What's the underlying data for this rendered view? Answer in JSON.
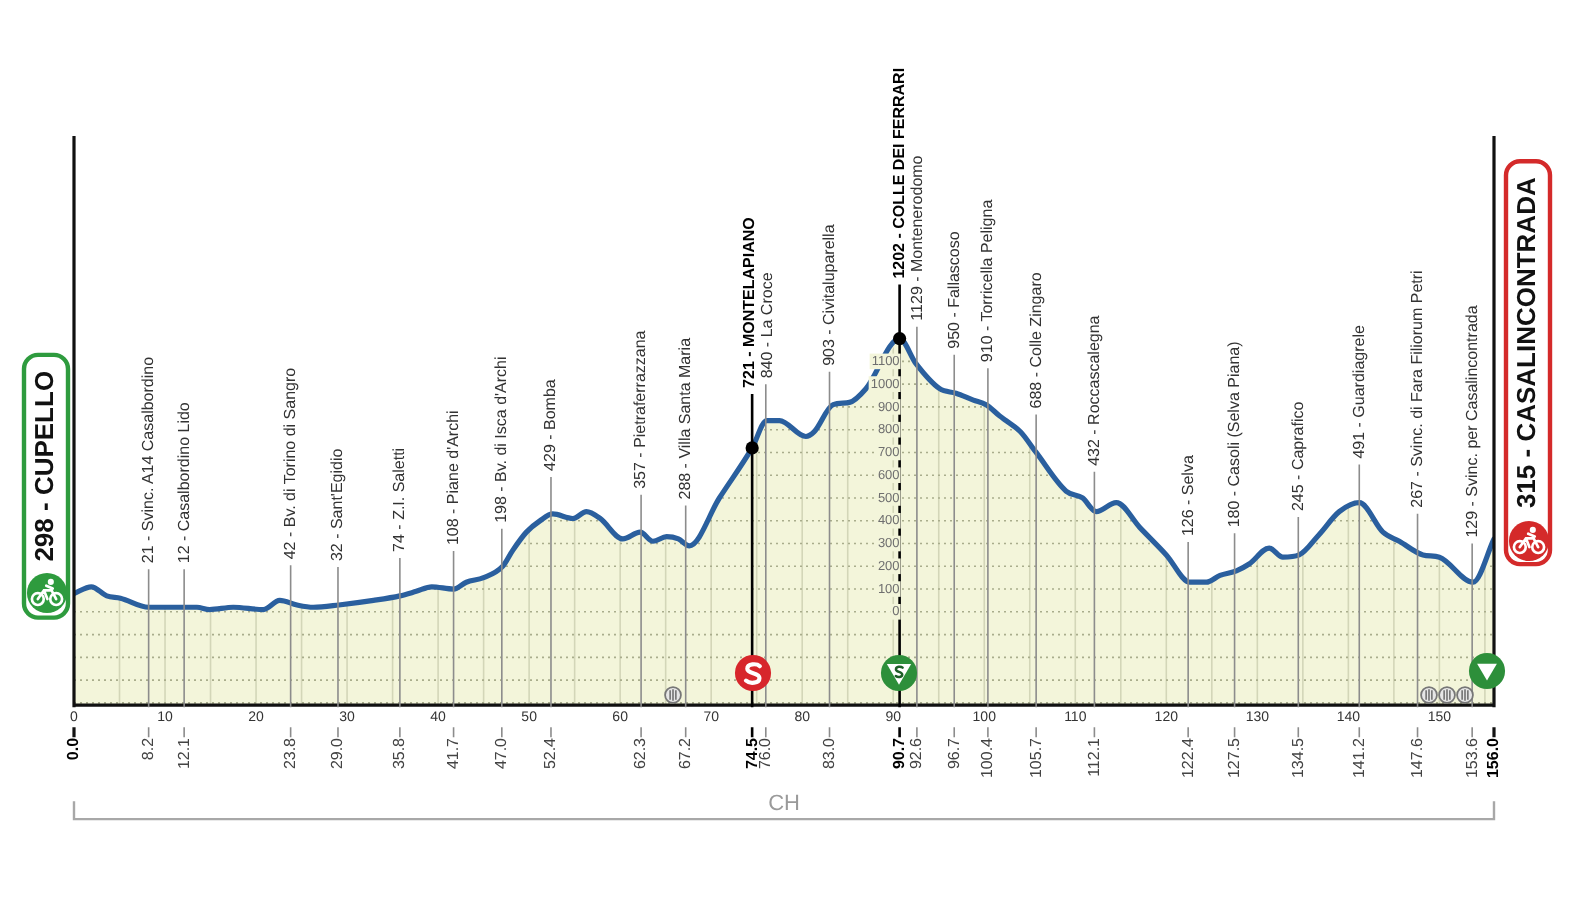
{
  "chart_data": {
    "type": "area",
    "x": [
      0,
      1.9,
      3.6,
      5.1,
      8.2,
      10.9,
      13.5,
      14.9,
      17.5,
      20.8,
      22.6,
      24.5,
      26.3,
      29.1,
      32.9,
      35.8,
      37.6,
      39.3,
      41.7,
      43.1,
      45,
      47.1,
      48.2,
      49.7,
      51.2,
      52.6,
      54.8,
      56.3,
      57.8,
      60.3,
      62.2,
      63.6,
      65.1,
      66.4,
      67.6,
      70.9,
      74.5,
      76.1,
      77.5,
      80.4,
      81.3,
      83.4,
      85.2,
      87,
      90.7,
      92.5,
      95.1,
      96.9,
      98.8,
      100.2,
      101.7,
      102.4,
      104,
      105.7,
      109,
      110.8,
      112.3,
      114.5,
      117.1,
      120,
      122.6,
      124.4,
      125.9,
      127.7,
      129.1,
      131.3,
      132.8,
      134.6,
      136.8,
      139,
      141.2,
      143.8,
      145.6,
      148.2,
      150,
      153.7,
      156
    ],
    "series": [
      {
        "color": "#2a5f9e",
        "values": [
          80,
          110,
          70,
          60,
          20,
          20,
          20,
          10,
          20,
          10,
          50,
          30,
          20,
          30,
          50,
          70,
          90,
          110,
          100,
          130,
          150,
          200,
          270,
          350,
          400,
          430,
          410,
          440,
          410,
          320,
          350,
          310,
          330,
          320,
          290,
          500,
          720,
          840,
          840,
          770,
          790,
          910,
          920,
          980,
          1200,
          1090,
          980,
          960,
          930,
          910,
          860,
          840,
          790,
          700,
          530,
          500,
          440,
          480,
          370,
          250,
          130,
          130,
          160,
          180,
          210,
          280,
          240,
          250,
          340,
          440,
          480,
          350,
          310,
          250,
          240,
          130,
          320
        ]
      }
    ],
    "marker": "none",
    "xlim": [
      0,
      156
    ],
    "xticks": [
      0,
      {
        "value": 5,
        "label": null
      },
      10,
      {
        "value": 15,
        "label": null
      },
      20,
      {
        "value": 25,
        "label": null
      },
      30,
      {
        "value": 35,
        "label": null
      },
      40,
      {
        "value": 45,
        "label": null
      },
      50,
      {
        "value": 55,
        "label": null
      },
      60,
      {
        "value": 65,
        "label": null
      },
      70,
      {
        "value": 75,
        "label": null
      },
      80,
      {
        "value": 85,
        "label": null
      },
      90,
      {
        "value": 95,
        "label": null
      },
      100,
      {
        "value": 105,
        "label": null
      },
      110,
      {
        "value": 115,
        "label": null
      },
      120,
      {
        "value": 125,
        "label": null
      },
      130,
      {
        "value": 135,
        "label": null
      },
      140,
      {
        "value": 145,
        "label": null
      },
      150,
      {
        "value": 155,
        "label": null
      }
    ],
    "x2lim": [
      0,
      156
    ],
    "x2ticks": [
      {
        "value": 0,
        "label": "0.0"
      },
      8.2,
      12.1,
      23.8,
      {
        "value": 29,
        "label": "29.0"
      },
      35.8,
      41.7,
      {
        "value": 47,
        "label": "47.0"
      },
      52.4,
      62.3,
      67.2,
      74.5,
      {
        "value": 76,
        "label": "76.0"
      },
      {
        "value": 83,
        "label": "83.0"
      },
      90.7,
      92.6,
      96.7,
      100.4,
      105.7,
      112.1,
      122.4,
      127.5,
      134.5,
      141.2,
      147.6,
      153.6,
      {
        "value": 156,
        "label": "156.0"
      }
    ],
    "ylim": [
      -410,
      2090
    ],
    "yticks": [
      {
        "value": -400,
        "label": null
      },
      {
        "value": -300,
        "label": null
      },
      {
        "value": -200,
        "label": null
      },
      {
        "value": -100,
        "label": null
      },
      0,
      100,
      200,
      300,
      400,
      500,
      600,
      700,
      800,
      900,
      1000,
      1100
    ],
    "grid": true,
    "bands": [
      {
        "axis": "y",
        "from": -410,
        "to": 0,
        "color": "#f3f5da"
      }
    ],
    "ref_lines": [
      {
        "axis": "x",
        "value": 8.2,
        "label": "21 - Svinc. A14 Casalbordino",
        "color": "#8c8c8c"
      },
      {
        "axis": "x",
        "value": 12.1,
        "label": "12 - Casalbordino Lido",
        "color": "#8c8c8c"
      },
      {
        "axis": "x",
        "value": 23.8,
        "label": "42 - Bv. di Torino di Sangro",
        "color": "#8c8c8c"
      },
      {
        "axis": "x",
        "value": 29.0,
        "label": "32 - Sant'Egidio",
        "color": "#8c8c8c"
      },
      {
        "axis": "x",
        "value": 35.8,
        "label": "74 - Z.I. Saletti",
        "color": "#8c8c8c"
      },
      {
        "axis": "x",
        "value": 41.7,
        "label": "108 - Piane d'Archi",
        "color": "#8c8c8c"
      },
      {
        "axis": "x",
        "value": 47.0,
        "label": "198 - Bv. di Isca d'Archi",
        "color": "#8c8c8c"
      },
      {
        "axis": "x",
        "value": 52.4,
        "label": "429 - Bomba",
        "color": "#8c8c8c"
      },
      {
        "axis": "x",
        "value": 62.3,
        "label": "357 - Pietraferrazzana",
        "color": "#8c8c8c"
      },
      {
        "axis": "x",
        "value": 67.2,
        "label": "288 - Villa Santa Maria",
        "color": "#8c8c8c"
      },
      {
        "axis": "x",
        "value": 74.5,
        "label": "721 - MONTELAPIANO",
        "color": "#000000"
      },
      {
        "axis": "x",
        "value": 76.0,
        "label": "840 - La Croce",
        "color": "#8c8c8c"
      },
      {
        "axis": "x",
        "value": 83.0,
        "label": "903 - Civitaluparella",
        "color": "#8c8c8c"
      },
      {
        "axis": "x",
        "value": 90.7,
        "label": "1202 - COLLE DEI FERRARI",
        "color": "#000000"
      },
      {
        "axis": "x",
        "value": 92.6,
        "label": "1129 - Montenerodomo",
        "color": "#8c8c8c"
      },
      {
        "axis": "x",
        "value": 96.7,
        "label": "950 - Fallascoso",
        "color": "#8c8c8c"
      },
      {
        "axis": "x",
        "value": 100.4,
        "label": "910 - Torricella Peligna",
        "color": "#8c8c8c"
      },
      {
        "axis": "x",
        "value": 105.7,
        "label": "688 - Colle Zingaro",
        "color": "#8c8c8c"
      },
      {
        "axis": "x",
        "value": 112.1,
        "label": "432 - Roccascalegna",
        "color": "#8c8c8c"
      },
      {
        "axis": "x",
        "value": 122.4,
        "label": "126 - Selva",
        "color": "#8c8c8c"
      },
      {
        "axis": "x",
        "value": 127.5,
        "label": "180 - Casoli (Selva Piana)",
        "color": "#8c8c8c"
      },
      {
        "axis": "x",
        "value": 134.5,
        "label": "245 - Caprafico",
        "color": "#8c8c8c"
      },
      {
        "axis": "x",
        "value": 141.2,
        "label": "491 - Guardiagrele",
        "color": "#8c8c8c"
      },
      {
        "axis": "x",
        "value": 147.6,
        "label": "267 - Svinc. di Fara Filiorum Petri",
        "color": "#8c8c8c"
      },
      {
        "axis": "x",
        "value": 153.6,
        "label": "129 - Svinc. per Casalincontrada",
        "color": "#8c8c8c"
      }
    ],
    "annotations": [
      "298 - CUPELLO",
      {
        "text": "315 - CASALINCONTRADA",
        "x": 156,
        "y": 315
      },
      "CH"
    ]
  }
}
